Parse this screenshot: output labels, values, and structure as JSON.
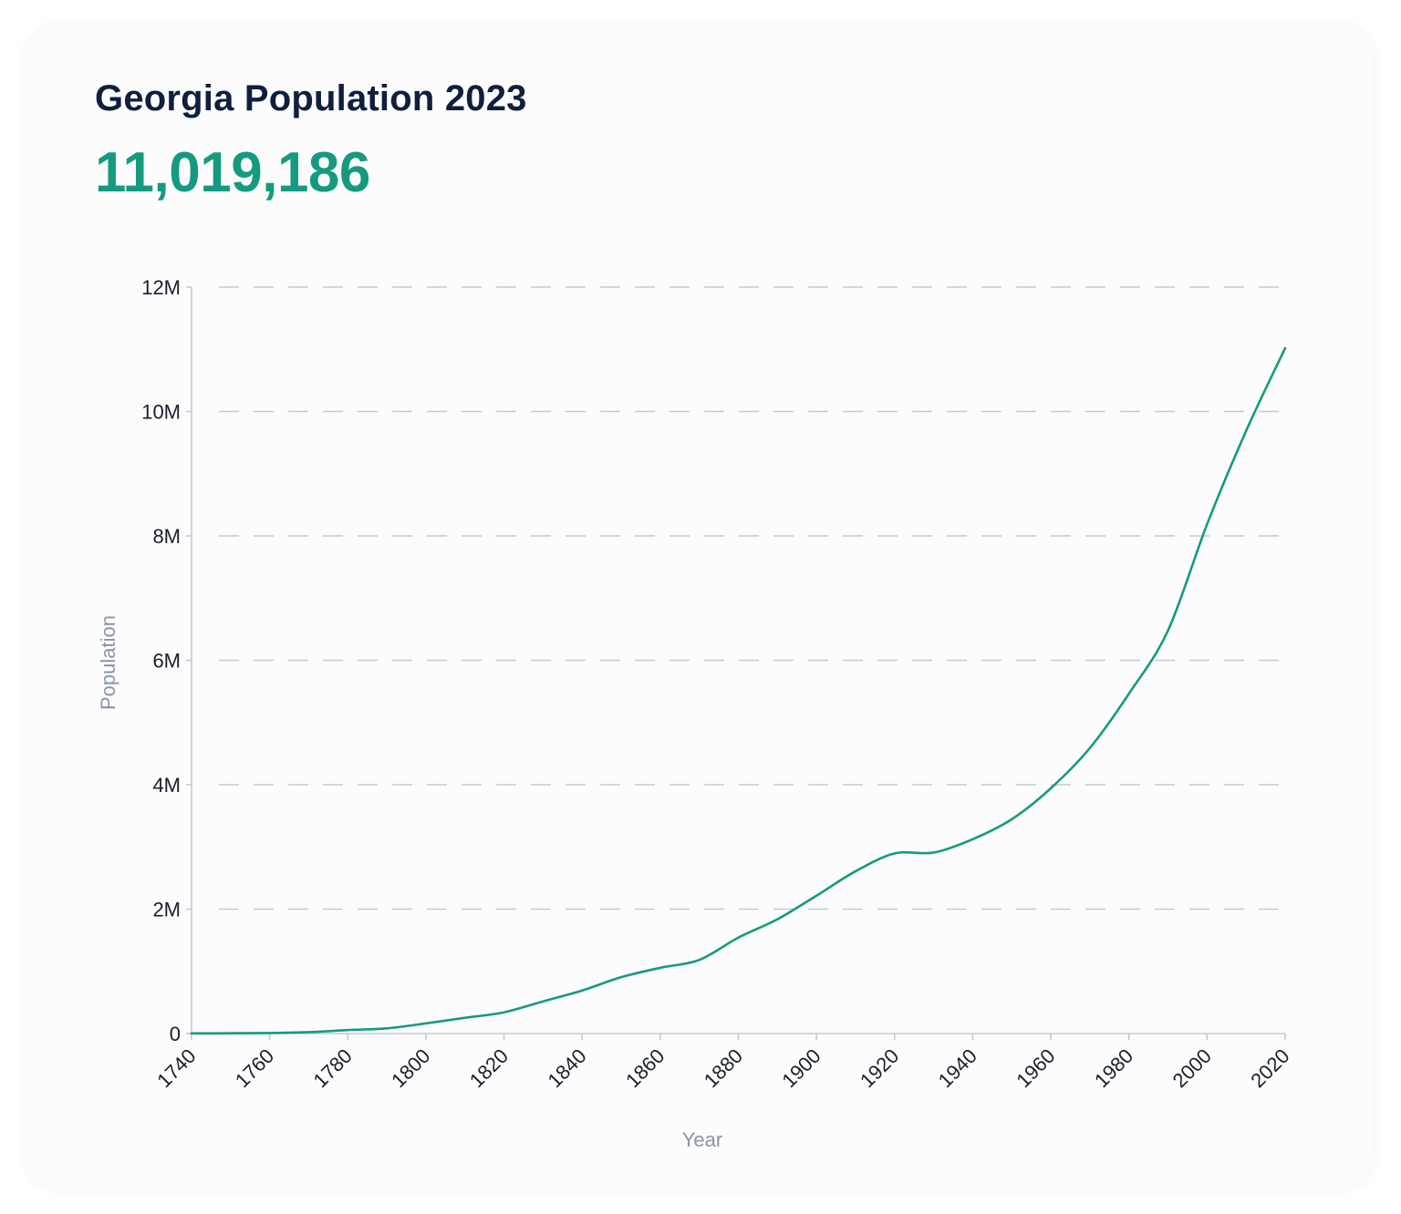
{
  "header": {
    "title": "Georgia Population 2023",
    "value": "11,019,186"
  },
  "colors": {
    "title": "#0f1f3d",
    "accent": "#159a80",
    "grid": "#c4c9d4",
    "axis": "#c4c9d4",
    "tick_label": "#1a1f2e",
    "axis_label": "#8a93a8"
  },
  "chart_data": {
    "type": "line",
    "title": "Georgia Population 2023",
    "xlabel": "Year",
    "ylabel": "Population",
    "xlim": [
      1740,
      2020
    ],
    "ylim": [
      0,
      12000000
    ],
    "x_ticks": [
      1740,
      1760,
      1780,
      1800,
      1820,
      1840,
      1860,
      1880,
      1900,
      1920,
      1940,
      1960,
      1980,
      2000,
      2020
    ],
    "x_tick_labels": [
      "1740",
      "1760",
      "1780",
      "1800",
      "1820",
      "1840",
      "1860",
      "1880",
      "1900",
      "1920",
      "1940",
      "1960",
      "1980",
      "2000",
      "2020"
    ],
    "y_ticks": [
      0,
      2000000,
      4000000,
      6000000,
      8000000,
      10000000,
      12000000
    ],
    "y_tick_labels": [
      "0",
      "2M",
      "4M",
      "6M",
      "8M",
      "10M",
      "12M"
    ],
    "grid": "horizontal dashed",
    "legend": "none",
    "series": [
      {
        "color": "#159a80",
        "x": [
          1740,
          1750,
          1760,
          1770,
          1780,
          1790,
          1800,
          1810,
          1820,
          1830,
          1840,
          1850,
          1860,
          1870,
          1880,
          1890,
          1900,
          1910,
          1920,
          1930,
          1940,
          1950,
          1960,
          1970,
          1980,
          1990,
          2000,
          2010,
          2020
        ],
        "values": [
          2000,
          4000,
          9000,
          23000,
          56000,
          83000,
          163000,
          253000,
          341000,
          517000,
          691000,
          906000,
          1057000,
          1184000,
          1542000,
          1837000,
          2216000,
          2609000,
          2896000,
          2909000,
          3124000,
          3445000,
          3943000,
          4590000,
          5463000,
          6478000,
          8186000,
          9688000,
          11019000
        ]
      }
    ]
  }
}
